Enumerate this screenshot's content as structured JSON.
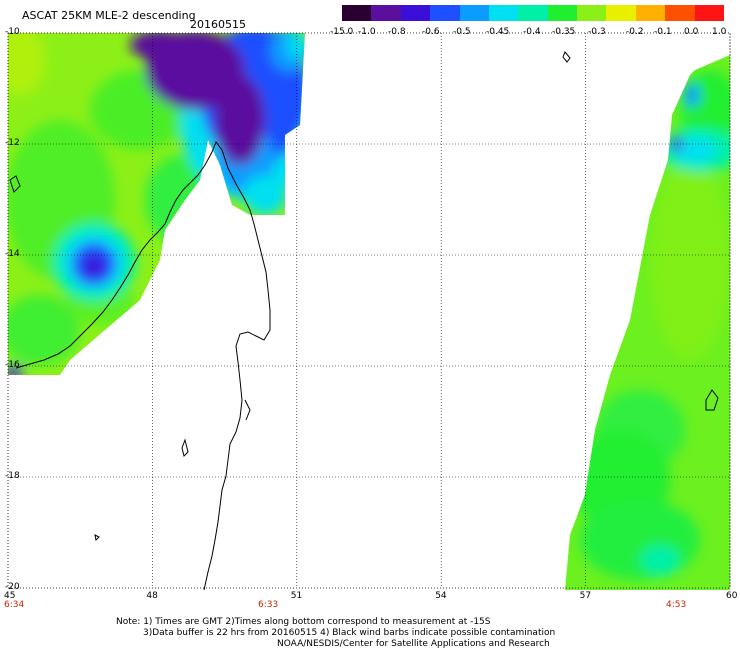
{
  "title": {
    "product": "ASCAT 25KM MLE-2 descending",
    "date": "20160515"
  },
  "colorbar": {
    "labels": [
      "-15.0",
      "-1.0",
      "-0.8",
      "-0.6",
      "-0.5",
      "-0.45",
      "-0.4",
      "-0.35",
      "-0.3",
      "-0.2",
      "-0.1",
      "0.0",
      "1.0"
    ],
    "colors": [
      "#2a0030",
      "#5a0f9e",
      "#3a10d8",
      "#1f50ff",
      "#0a9cff",
      "#00e0f0",
      "#00f0a8",
      "#20ee30",
      "#8cf018",
      "#e8f000",
      "#ffb000",
      "#ff5000",
      "#ff1414"
    ]
  },
  "map": {
    "lat_ticks": [
      -10,
      -12,
      -14,
      -16,
      -18,
      -20
    ],
    "lat_labels": [
      "-10",
      "-12",
      "-14",
      "-16",
      "-18",
      "-20"
    ],
    "lon_ticks": [
      45,
      48,
      51,
      54,
      57,
      60
    ],
    "lon_labels": [
      "45",
      "48",
      "51",
      "54",
      "57",
      "60"
    ],
    "lat_range": [
      -20,
      -10
    ],
    "lon_range": [
      45,
      60
    ],
    "times": {
      "t1": "6:34",
      "t2": "6:33",
      "t3": "4:53"
    }
  },
  "notes": {
    "line1": "Note: 1) Times are GMT 2)Times along bottom correspond to measurement at -15S",
    "line2": "3)Data buffer is 22 hrs from 20160515 4) Black wind barbs indicate possible contamination",
    "line3": "NOAA/NESDIS/Center for Satellite Applications and Research"
  }
}
